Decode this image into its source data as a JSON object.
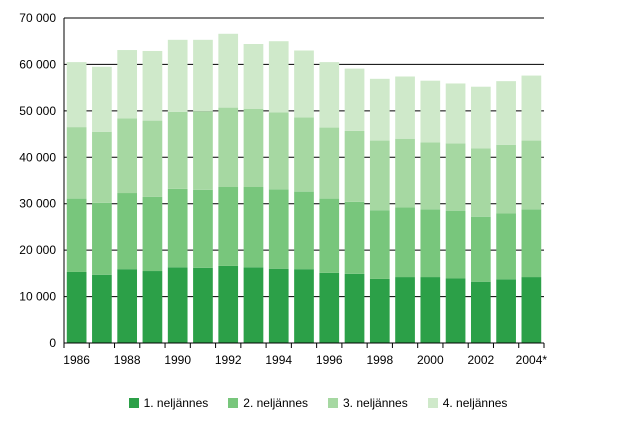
{
  "chart_data": {
    "type": "bar",
    "stacked": true,
    "categories": [
      "1986",
      "1987",
      "1988",
      "1989",
      "1990",
      "1991",
      "1992",
      "1993",
      "1994",
      "1995",
      "1996",
      "1997",
      "1998",
      "1999",
      "2000",
      "2001",
      "2002",
      "2003",
      "2004*"
    ],
    "x_tick_labels": [
      "1986",
      "1988",
      "1990",
      "1992",
      "1994",
      "1996",
      "1998",
      "2000",
      "2002",
      "2004*"
    ],
    "y_tick_labels": [
      "0",
      "10 000",
      "20 000",
      "30 000",
      "40 000",
      "50 000",
      "60 000",
      "70 000"
    ],
    "ylim": [
      0,
      70000
    ],
    "grid": "horizontal",
    "legend_position": "bottom",
    "series": [
      {
        "name": "1. neljännes",
        "color": "#2ca048",
        "values": [
          15300,
          14700,
          15900,
          15500,
          16300,
          16200,
          16600,
          16300,
          16000,
          15900,
          15100,
          14900,
          13800,
          14200,
          14200,
          13900,
          13200,
          13700,
          14200
        ]
      },
      {
        "name": "2. neljännes",
        "color": "#78c67c",
        "values": [
          15800,
          15500,
          16400,
          16000,
          16900,
          16800,
          17000,
          17300,
          17100,
          16700,
          16000,
          15500,
          14800,
          15000,
          14600,
          14600,
          14000,
          14200,
          14600
        ]
      },
      {
        "name": "3. neljännes",
        "color": "#a6d8a2",
        "values": [
          15400,
          15300,
          16100,
          16400,
          16600,
          16900,
          17100,
          16800,
          16600,
          16000,
          15300,
          15300,
          15000,
          14800,
          14400,
          14500,
          14700,
          14800,
          14800
        ]
      },
      {
        "name": "4. neljännes",
        "color": "#cfe9ca",
        "values": [
          14000,
          14000,
          14700,
          15000,
          15500,
          15400,
          15900,
          14000,
          15300,
          14400,
          14100,
          13400,
          13300,
          13400,
          13300,
          12900,
          13300,
          13700,
          14000
        ]
      }
    ]
  }
}
